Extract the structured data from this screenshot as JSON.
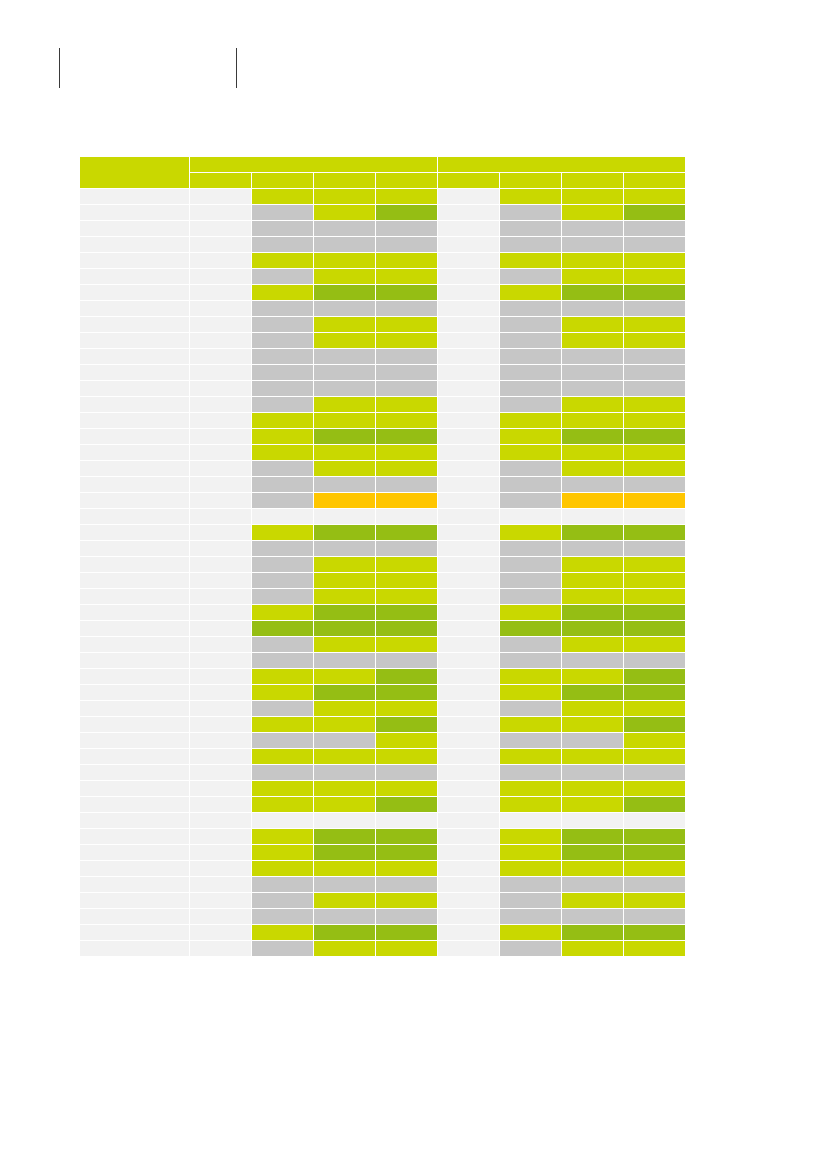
{
  "header": {
    "section_label": "",
    "page_title": ""
  },
  "table": {
    "corner_label": "",
    "groups": [
      {
        "label": "",
        "columns": [
          "",
          "",
          "",
          ""
        ]
      },
      {
        "label": "",
        "columns": [
          "",
          "",
          "",
          ""
        ]
      }
    ],
    "colors": {
      "lime": "#c9d800",
      "green": "#95be14",
      "grey": "#c6c6c6",
      "orange": "#ffc600",
      "none": "#f2f2f2"
    },
    "rows": [
      [
        "lime",
        "lime",
        "lime"
      ],
      [
        "grey",
        "lime",
        "green"
      ],
      [
        "grey",
        "grey",
        "grey"
      ],
      [
        "grey",
        "grey",
        "grey"
      ],
      [
        "lime",
        "lime",
        "lime"
      ],
      [
        "grey",
        "lime",
        "lime"
      ],
      [
        "lime",
        "green",
        "green"
      ],
      [
        "grey",
        "grey",
        "grey"
      ],
      [
        "grey",
        "lime",
        "lime"
      ],
      [
        "grey",
        "lime",
        "lime"
      ],
      [
        "grey",
        "grey",
        "grey"
      ],
      [
        "grey",
        "grey",
        "grey"
      ],
      [
        "grey",
        "grey",
        "grey"
      ],
      [
        "grey",
        "lime",
        "lime"
      ],
      [
        "lime",
        "lime",
        "lime"
      ],
      [
        "lime",
        "green",
        "green"
      ],
      [
        "lime",
        "lime",
        "lime"
      ],
      [
        "grey",
        "lime",
        "lime"
      ],
      [
        "grey",
        "grey",
        "grey"
      ],
      [
        "grey",
        "orange",
        "orange"
      ],
      [
        "none",
        "none",
        "none"
      ],
      [
        "lime",
        "green",
        "green"
      ],
      [
        "grey",
        "grey",
        "grey"
      ],
      [
        "grey",
        "lime",
        "lime"
      ],
      [
        "grey",
        "lime",
        "lime"
      ],
      [
        "grey",
        "lime",
        "lime"
      ],
      [
        "lime",
        "green",
        "green"
      ],
      [
        "green",
        "green",
        "green"
      ],
      [
        "grey",
        "lime",
        "lime"
      ],
      [
        "grey",
        "grey",
        "grey"
      ],
      [
        "lime",
        "lime",
        "green"
      ],
      [
        "lime",
        "green",
        "green"
      ],
      [
        "grey",
        "lime",
        "lime"
      ],
      [
        "lime",
        "lime",
        "green"
      ],
      [
        "grey",
        "grey",
        "lime"
      ],
      [
        "lime",
        "lime",
        "lime"
      ],
      [
        "grey",
        "grey",
        "grey"
      ],
      [
        "lime",
        "lime",
        "lime"
      ],
      [
        "lime",
        "lime",
        "green"
      ],
      [
        "none",
        "none",
        "none"
      ],
      [
        "lime",
        "green",
        "green"
      ],
      [
        "lime",
        "green",
        "green"
      ],
      [
        "lime",
        "lime",
        "lime"
      ],
      [
        "grey",
        "grey",
        "grey"
      ],
      [
        "grey",
        "lime",
        "lime"
      ],
      [
        "grey",
        "grey",
        "grey"
      ],
      [
        "lime",
        "green",
        "green"
      ],
      [
        "grey",
        "lime",
        "lime"
      ]
    ]
  }
}
